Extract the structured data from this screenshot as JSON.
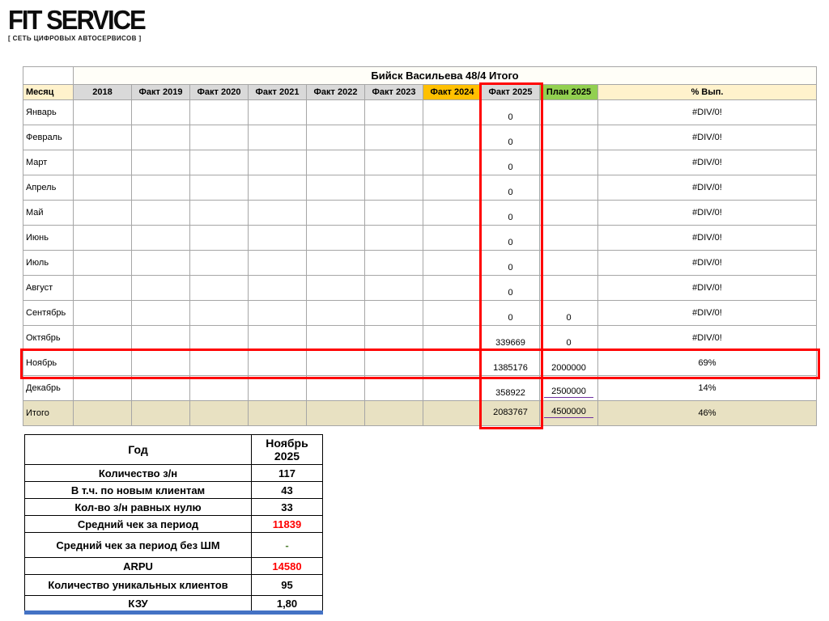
{
  "logo": {
    "title": "FIT SERVICE",
    "subtitle": "[ СЕТЬ ЦИФРОВЫХ АВТОСЕРВИСОВ ]"
  },
  "main_table": {
    "title": "Бийск Васильева 48/4 Итого",
    "columns": [
      {
        "label": "Месяц",
        "style": "cream"
      },
      {
        "label": "2018",
        "style": "gray"
      },
      {
        "label": "Факт 2019",
        "style": "gray"
      },
      {
        "label": "Факт 2020",
        "style": "gray"
      },
      {
        "label": "Факт 2021",
        "style": "gray"
      },
      {
        "label": "Факт 2022",
        "style": "gray"
      },
      {
        "label": "Факт 2023",
        "style": "gray"
      },
      {
        "label": "Факт 2024",
        "style": "orange"
      },
      {
        "label": "Факт 2025",
        "style": "gray"
      },
      {
        "label": "План 2025",
        "style": "green"
      },
      {
        "label": "% Вып.",
        "style": "cream"
      }
    ],
    "rows": [
      {
        "month": "Январь",
        "fact": "0",
        "plan": "",
        "pct": "#DIV/0!"
      },
      {
        "month": "Февраль",
        "fact": "0",
        "plan": "",
        "pct": "#DIV/0!"
      },
      {
        "month": "Март",
        "fact": "0",
        "plan": "",
        "pct": "#DIV/0!"
      },
      {
        "month": "Апрель",
        "fact": "0",
        "plan": "",
        "pct": "#DIV/0!"
      },
      {
        "month": "Май",
        "fact": "0",
        "plan": "",
        "pct": "#DIV/0!"
      },
      {
        "month": "Июнь",
        "fact": "0",
        "plan": "",
        "pct": "#DIV/0!"
      },
      {
        "month": "Июль",
        "fact": "0",
        "plan": "",
        "pct": "#DIV/0!"
      },
      {
        "month": "Август",
        "fact": "0",
        "plan": "",
        "pct": "#DIV/0!"
      },
      {
        "month": "Сентябрь",
        "fact": "0",
        "plan": "0",
        "pct": "#DIV/0!"
      },
      {
        "month": "Октябрь",
        "fact": "339669",
        "plan": "0",
        "pct": "#DIV/0!"
      },
      {
        "month": "Ноябрь",
        "fact": "1385176",
        "plan": "2000000",
        "pct": "69%"
      },
      {
        "month": "Декабрь",
        "fact": "358922",
        "plan": "2500000",
        "pct": "14%",
        "plan_link": true
      },
      {
        "month": "Итого",
        "fact": "2083767",
        "plan": "4500000",
        "pct": "46%",
        "plan_link": true,
        "total": true
      }
    ]
  },
  "annotations": {
    "column_highlight": {
      "column": "Факт 2025",
      "color": "#FF0000"
    },
    "row_highlight": {
      "row": "Ноябрь",
      "color": "#FF0000"
    }
  },
  "summary_table": {
    "col1_header": "Год",
    "col2_header": "Ноябрь 2025",
    "rows": [
      {
        "label": "Количество з/н",
        "value": "117"
      },
      {
        "label": "В т.ч. по новым клиентам",
        "value": "43"
      },
      {
        "label": "Кол-во з/н равных нулю",
        "value": "33"
      },
      {
        "label": "Средний чек за период",
        "value": "11839",
        "red": true
      },
      {
        "label": "Средний чек за период без ШМ",
        "value": "-",
        "muted": true
      },
      {
        "label": "ARPU",
        "value": "14580",
        "red": true
      },
      {
        "label": "Количество уникальных клиентов",
        "value": "95"
      },
      {
        "label": "КЗУ",
        "value": "1,80"
      }
    ]
  },
  "colors": {
    "header_cream": "#FFF2CC",
    "header_gray": "#D9D9D9",
    "header_orange": "#FFC000",
    "header_green": "#92D050",
    "total_row": "#E8E1C2",
    "highlight_red": "#FF0000",
    "value_red": "#FF0000",
    "link_underline_purple": "#7030A0",
    "bottom_bar_blue": "#4472C4"
  }
}
